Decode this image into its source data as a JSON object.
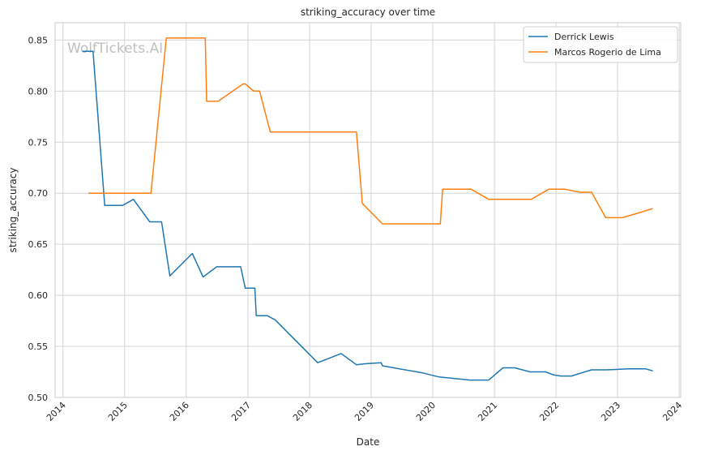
{
  "chart_data": {
    "type": "line",
    "title": "striking_accuracy over time",
    "xlabel": "Date",
    "ylabel": "striking_accuracy",
    "watermark": "WolfTickets.AI",
    "xlim": [
      "2013-11-15",
      "2024-01-10"
    ],
    "ylim": [
      0.5,
      0.867
    ],
    "x_ticks": [
      "2014-01-01",
      "2015-01-01",
      "2016-01-01",
      "2017-01-01",
      "2018-01-01",
      "2019-01-01",
      "2020-01-01",
      "2021-01-01",
      "2022-01-01",
      "2023-01-01",
      "2024-01-01"
    ],
    "x_tick_labels": [
      "2014",
      "2015",
      "2016",
      "2017",
      "2018",
      "2019",
      "2020",
      "2021",
      "2022",
      "2023",
      "2024"
    ],
    "y_ticks": [
      0.5,
      0.55,
      0.6,
      0.65,
      0.7,
      0.75,
      0.8,
      0.85
    ],
    "y_tick_labels": [
      "0.50",
      "0.55",
      "0.60",
      "0.65",
      "0.70",
      "0.75",
      "0.80",
      "0.85"
    ],
    "grid": true,
    "legend_position": "top-right",
    "series": [
      {
        "name": "Derrick Lewis",
        "color": "#1f77b4",
        "points": [
          [
            "2014-04-26",
            0.839
          ],
          [
            "2014-06-28",
            0.839
          ],
          [
            "2014-09-05",
            0.688
          ],
          [
            "2014-12-20",
            0.688
          ],
          [
            "2015-02-22",
            0.694
          ],
          [
            "2015-05-30",
            0.672
          ],
          [
            "2015-08-08",
            0.672
          ],
          [
            "2015-09-26",
            0.619
          ],
          [
            "2016-02-06",
            0.641
          ],
          [
            "2016-04-10",
            0.618
          ],
          [
            "2016-06-30",
            0.628
          ],
          [
            "2016-11-19",
            0.628
          ],
          [
            "2016-12-16",
            0.607
          ],
          [
            "2017-02-11",
            0.607
          ],
          [
            "2017-02-19",
            0.58
          ],
          [
            "2017-04-26",
            0.58
          ],
          [
            "2017-06-11",
            0.576
          ],
          [
            "2018-02-18",
            0.534
          ],
          [
            "2018-07-07",
            0.543
          ],
          [
            "2018-10-06",
            0.532
          ],
          [
            "2018-11-25",
            0.533
          ],
          [
            "2019-03-02",
            0.534
          ],
          [
            "2019-03-09",
            0.531
          ],
          [
            "2019-11-02",
            0.524
          ],
          [
            "2020-02-08",
            0.52
          ],
          [
            "2020-08-08",
            0.517
          ],
          [
            "2020-11-28",
            0.517
          ],
          [
            "2021-02-20",
            0.529
          ],
          [
            "2021-05-01",
            0.529
          ],
          [
            "2021-07-31",
            0.525
          ],
          [
            "2021-10-30",
            0.525
          ],
          [
            "2021-12-18",
            0.522
          ],
          [
            "2022-01-29",
            0.521
          ],
          [
            "2022-04-02",
            0.521
          ],
          [
            "2022-07-30",
            0.527
          ],
          [
            "2022-10-29",
            0.527
          ],
          [
            "2023-03-04",
            0.528
          ],
          [
            "2023-06-17",
            0.528
          ],
          [
            "2023-07-29",
            0.526
          ]
        ]
      },
      {
        "name": "Marcos Rogerio de Lima",
        "color": "#ff7f0e",
        "points": [
          [
            "2014-05-31",
            0.7
          ],
          [
            "2015-06-06",
            0.7
          ],
          [
            "2015-09-05",
            0.852
          ],
          [
            "2016-04-23",
            0.852
          ],
          [
            "2016-05-01",
            0.79
          ],
          [
            "2016-07-08",
            0.79
          ],
          [
            "2016-12-03",
            0.807
          ],
          [
            "2016-12-17",
            0.807
          ],
          [
            "2017-02-04",
            0.8
          ],
          [
            "2017-03-11",
            0.8
          ],
          [
            "2017-05-13",
            0.76
          ],
          [
            "2018-10-06",
            0.76
          ],
          [
            "2018-11-10",
            0.69
          ],
          [
            "2019-03-09",
            0.67
          ],
          [
            "2020-02-15",
            0.67
          ],
          [
            "2020-02-29",
            0.704
          ],
          [
            "2020-08-15",
            0.704
          ],
          [
            "2020-11-28",
            0.694
          ],
          [
            "2021-08-07",
            0.694
          ],
          [
            "2021-11-20",
            0.704
          ],
          [
            "2022-02-19",
            0.704
          ],
          [
            "2022-05-21",
            0.701
          ],
          [
            "2022-07-30",
            0.701
          ],
          [
            "2022-10-22",
            0.676
          ],
          [
            "2023-01-28",
            0.676
          ],
          [
            "2023-04-22",
            0.68
          ],
          [
            "2023-07-29",
            0.685
          ]
        ]
      }
    ]
  }
}
